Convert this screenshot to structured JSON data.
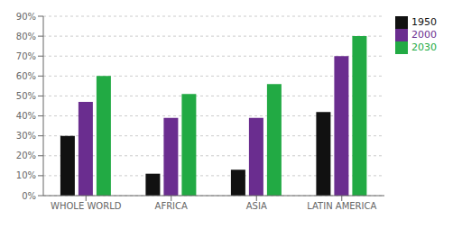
{
  "chart_data": {
    "type": "bar",
    "categories": [
      "WHOLE WORLD",
      "AFRICA",
      "ASIA",
      "LATIN AMERICA"
    ],
    "series": [
      {
        "name": "1950",
        "color": "#111111",
        "values": [
          30,
          11,
          13,
          42
        ]
      },
      {
        "name": "2000",
        "color": "#6a2d8f",
        "values": [
          47,
          39,
          39,
          70
        ]
      },
      {
        "name": "2030",
        "color": "#22aa44",
        "values": [
          60,
          51,
          56,
          80
        ]
      }
    ],
    "ylim": [
      0,
      90
    ],
    "yticks": [
      {
        "value": 0,
        "label": "0%"
      },
      {
        "value": 10,
        "label": "10%"
      },
      {
        "value": 20,
        "label": "20%"
      },
      {
        "value": 30,
        "label": "30%"
      },
      {
        "value": 40,
        "label": "40%"
      },
      {
        "value": 50,
        "label": "50%"
      },
      {
        "value": 60,
        "label": "60%"
      },
      {
        "value": 70,
        "label": "70%"
      },
      {
        "value": 80,
        "label": "80%"
      },
      {
        "value": 90,
        "label": "90%"
      }
    ],
    "grid": true,
    "legend": "right"
  }
}
